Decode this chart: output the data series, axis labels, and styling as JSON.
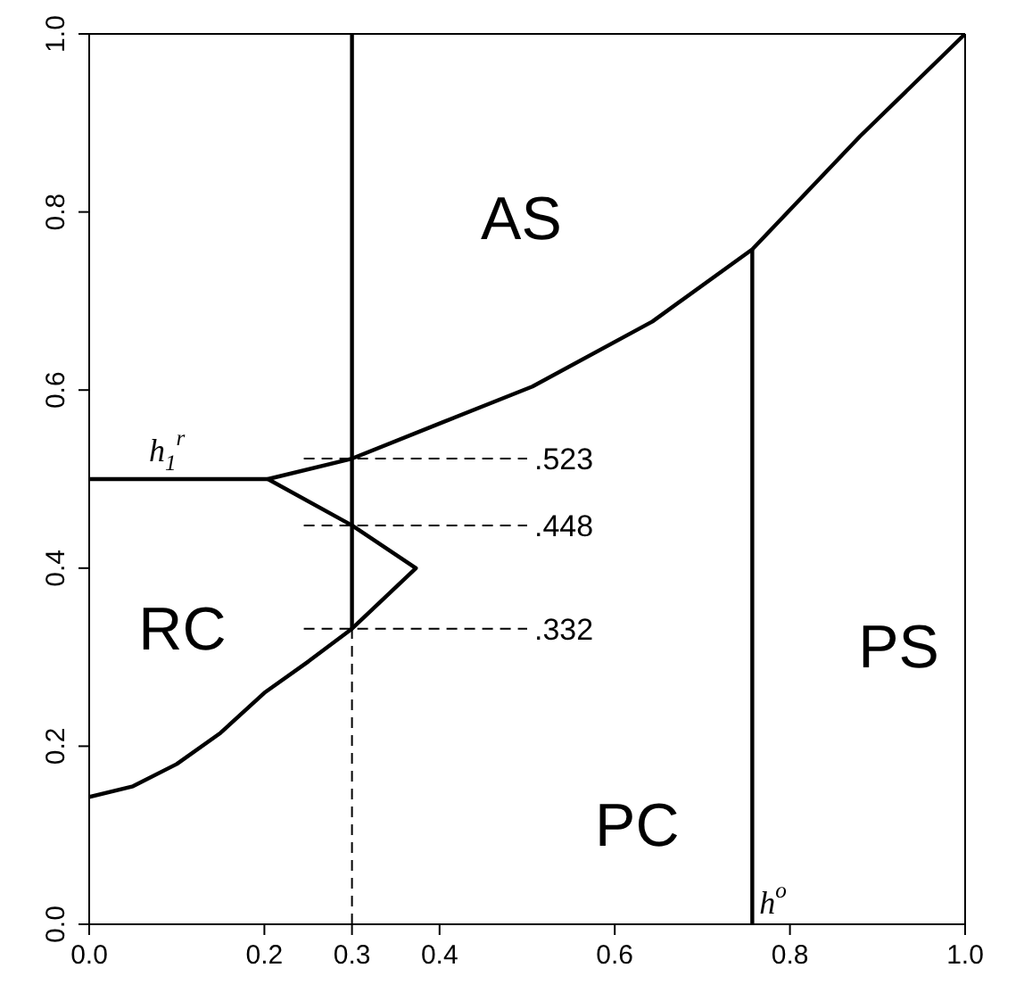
{
  "chart_data": {
    "type": "line",
    "xlim": [
      0,
      1
    ],
    "ylim": [
      0,
      1
    ],
    "xticks": [
      {
        "value": 0,
        "label": "0.0"
      },
      0.2,
      0.3,
      0.4,
      0.6,
      0.8,
      {
        "value": 1,
        "label": "1.0"
      }
    ],
    "yticks": [
      {
        "value": 0,
        "label": "0.0"
      },
      0.2,
      0.4,
      0.6,
      0.8,
      {
        "value": 1,
        "label": "1.0"
      }
    ],
    "marker": "none",
    "series": [
      {
        "color": "#000000",
        "line_style": "solid",
        "x": [
          0,
          0.05,
          0.1,
          0.15,
          0.2,
          0.25,
          0.3,
          0.373,
          0.3,
          0.204,
          0.3,
          0.404,
          0.506,
          0.643,
          0.757,
          0.88,
          1
        ],
        "values": [
          0.143,
          0.155,
          0.18,
          0.215,
          0.26,
          0.295,
          0.332,
          0.4,
          0.448,
          0.5,
          0.523,
          0.564,
          0.604,
          0.677,
          0.758,
          0.885,
          1
        ]
      },
      {
        "color": "#000000",
        "line_style": "solid",
        "x": [
          0,
          0.204
        ],
        "values": [
          0.5,
          0.5
        ]
      },
      {
        "color": "#000000",
        "line_style": "solid",
        "x": [
          0.3,
          0.3
        ],
        "values": [
          0.332,
          1
        ]
      },
      {
        "color": "#000000",
        "line_style": "solid",
        "x": [
          0.757,
          0.757
        ],
        "values": [
          0,
          0.758
        ]
      },
      {
        "color": "#000000",
        "line_style": "dashed",
        "x": [
          0.3,
          0.3
        ],
        "values": [
          0,
          0.332
        ]
      },
      {
        "color": "#000000",
        "line_style": "dashed",
        "x": [
          0.245,
          0.5
        ],
        "values": [
          0.523,
          0.523
        ]
      },
      {
        "color": "#000000",
        "line_style": "dashed",
        "x": [
          0.245,
          0.5
        ],
        "values": [
          0.448,
          0.448
        ]
      },
      {
        "color": "#000000",
        "line_style": "dashed",
        "x": [
          0.245,
          0.5
        ],
        "values": [
          0.332,
          0.332
        ]
      }
    ],
    "annotations": [
      {
        "text": ".523",
        "x": 0.5,
        "y": 0.523
      },
      {
        "text": ".448",
        "x": 0.5,
        "y": 0.448
      },
      {
        "text": ".332",
        "x": 0.5,
        "y": 0.332
      },
      {
        "text": "h$_{1}$$^{r}$",
        "x": 0.06,
        "y": 0.5
      },
      {
        "text": "h$^{o}$",
        "x": 0.757,
        "y": 0
      },
      "AS",
      "RC",
      "PC",
      "PS"
    ]
  }
}
